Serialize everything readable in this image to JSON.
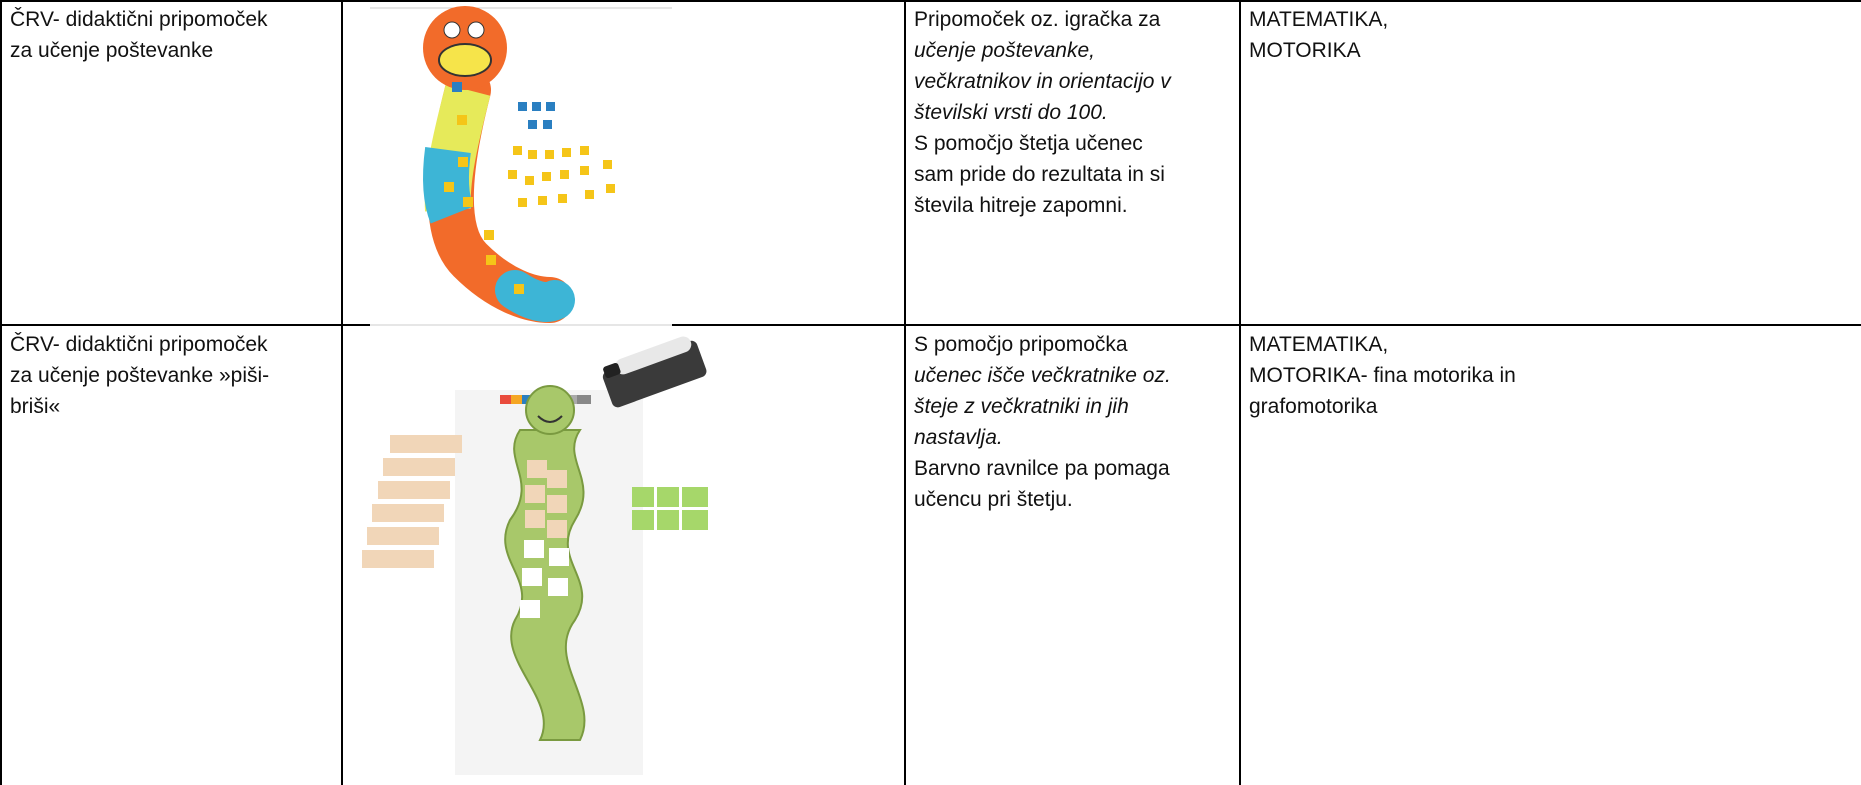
{
  "table": {
    "rows": [
      {
        "name": [
          "ČRV- didaktični pripomoček",
          "za učenje poštevanke"
        ],
        "description": [
          {
            "text": "Pripomoček oz. igračka za"
          },
          {
            "text": "učenje poštevanke,",
            "italic": true
          },
          {
            "text": "večkratnikov in orientacijo v",
            "italic": true
          },
          {
            "text": "številski vrsti do 100.",
            "italic": true
          },
          {
            "text": "S pomočjo štetja učenec"
          },
          {
            "text": "sam pride do rezultata in si"
          },
          {
            "text": "števila hitreje zapomni."
          }
        ],
        "area": [
          "MATEMATIKA,",
          "MOTORIKA"
        ]
      },
      {
        "name": [
          "ČRV- didaktični pripomoček",
          "za učenje poštevanke »piši-",
          "briši«"
        ],
        "description": [
          {
            "text": "S pomočjo pripomočka"
          },
          {
            "text": "učenec išče večkratnike oz.",
            "italic": true
          },
          {
            "text": "šteje z večkratniki in jih",
            "italic": true
          },
          {
            "text": "nastavlja.",
            "italic": true
          },
          {
            "text": "Barvno ravnilce pa pomaga"
          },
          {
            "text": "učencu pri štetju."
          }
        ],
        "area": [
          "MATEMATIKA,",
          "MOTORIKA- fina motorika in",
          "grafomotorika"
        ]
      }
    ]
  }
}
